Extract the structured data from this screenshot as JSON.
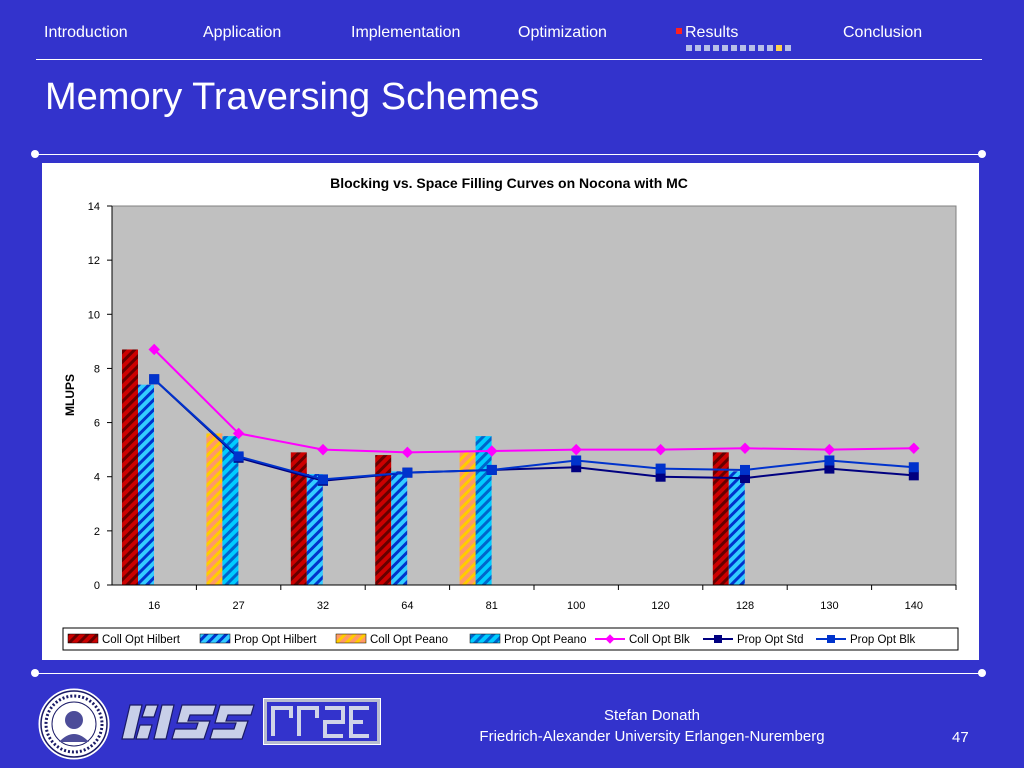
{
  "nav": {
    "items": [
      {
        "label": "Introduction"
      },
      {
        "label": "Application"
      },
      {
        "label": "Implementation"
      },
      {
        "label": "Optimization"
      },
      {
        "label": "Results"
      },
      {
        "label": "Conclusion"
      }
    ],
    "active_index": 4,
    "progress": {
      "total": 12,
      "active": 10
    }
  },
  "slide": {
    "title": "Memory Traversing Schemes"
  },
  "chart_data": {
    "type": "bar",
    "title": "Blocking vs. Space Filling Curves on Nocona with MC",
    "xlabel": "",
    "ylabel": "MLUPS",
    "ylim": [
      0,
      14
    ],
    "yticks": [
      0,
      2,
      4,
      6,
      8,
      10,
      12,
      14
    ],
    "categories": [
      "16",
      "27",
      "32",
      "64",
      "81",
      "100",
      "120",
      "128",
      "130",
      "140"
    ],
    "grid": false,
    "plot_background": "#c0c0c0",
    "legend_position": "bottom",
    "bar_series": [
      {
        "name": "Coll Opt Hilbert",
        "color": "#cc0000",
        "stripe": "#660000",
        "values": [
          8.7,
          null,
          4.9,
          4.8,
          null,
          null,
          null,
          4.9,
          null,
          null
        ]
      },
      {
        "name": "Prop Opt Hilbert",
        "color": "#33ccff",
        "stripe": "#0033cc",
        "values": [
          7.4,
          null,
          4.1,
          4.2,
          null,
          null,
          null,
          4.2,
          null,
          null
        ]
      },
      {
        "name": "Coll Opt Peano",
        "color": "#ff9966",
        "stripe": "#ffcc00",
        "values": [
          null,
          5.6,
          null,
          null,
          4.9,
          null,
          null,
          null,
          null,
          null
        ]
      },
      {
        "name": "Prop Opt Peano",
        "color": "#00ccff",
        "stripe": "#0066cc",
        "values": [
          null,
          5.5,
          null,
          null,
          5.5,
          null,
          null,
          null,
          null,
          null
        ]
      }
    ],
    "line_series": [
      {
        "name": "Coll Opt Blk",
        "color": "#ff00ff",
        "marker": "diamond",
        "values": [
          8.7,
          5.6,
          5.0,
          4.9,
          4.95,
          5.0,
          5.0,
          5.05,
          5.0,
          5.05
        ]
      },
      {
        "name": "Prop Opt Std",
        "color": "#000080",
        "marker": "square",
        "values": [
          7.6,
          4.7,
          3.85,
          4.15,
          4.25,
          4.35,
          4.0,
          3.95,
          4.3,
          4.05
        ]
      },
      {
        "name": "Prop Opt Blk",
        "color": "#0033cc",
        "marker": "square",
        "values": [
          7.6,
          4.75,
          3.9,
          4.15,
          4.25,
          4.6,
          4.3,
          4.25,
          4.6,
          4.35
        ]
      }
    ]
  },
  "footer": {
    "author": "Stefan Donath",
    "institution": "Friedrich-Alexander University Erlangen-Nuremberg",
    "page": "47",
    "logos": [
      {
        "icon": "university-seal-icon"
      },
      {
        "icon": "lss-logo-icon"
      },
      {
        "icon": "rrze-logo-icon"
      }
    ]
  }
}
